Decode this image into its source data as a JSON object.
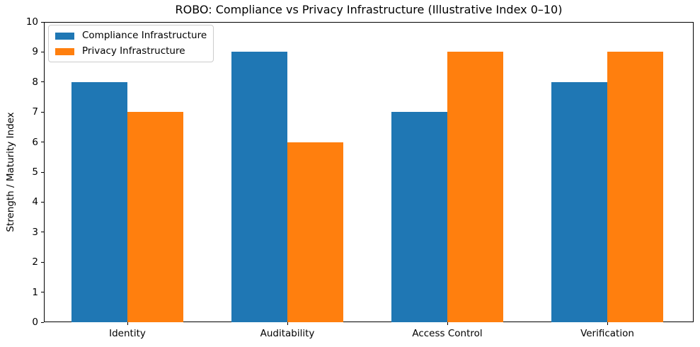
{
  "chart_data": {
    "type": "bar",
    "title": "ROBO: Compliance vs Privacy Infrastructure (Illustrative Index 0–10)",
    "xlabel": "",
    "ylabel": "Strength / Maturity Index",
    "categories": [
      "Identity",
      "Auditability",
      "Access Control",
      "Verification"
    ],
    "series": [
      {
        "name": "Compliance Infrastructure",
        "color": "#1f77b4",
        "values": [
          8,
          9,
          7,
          8
        ]
      },
      {
        "name": "Privacy Infrastructure",
        "color": "#ff7f0e",
        "values": [
          7,
          6,
          9,
          9
        ]
      }
    ],
    "ylim": [
      0,
      10
    ],
    "yticks": [
      0,
      1,
      2,
      3,
      4,
      5,
      6,
      7,
      8,
      9,
      10
    ],
    "grid": false,
    "legend_position": "upper-left",
    "bar_width_fraction": 0.35,
    "background_color": "#ffffff",
    "spine_color": "#000000"
  }
}
